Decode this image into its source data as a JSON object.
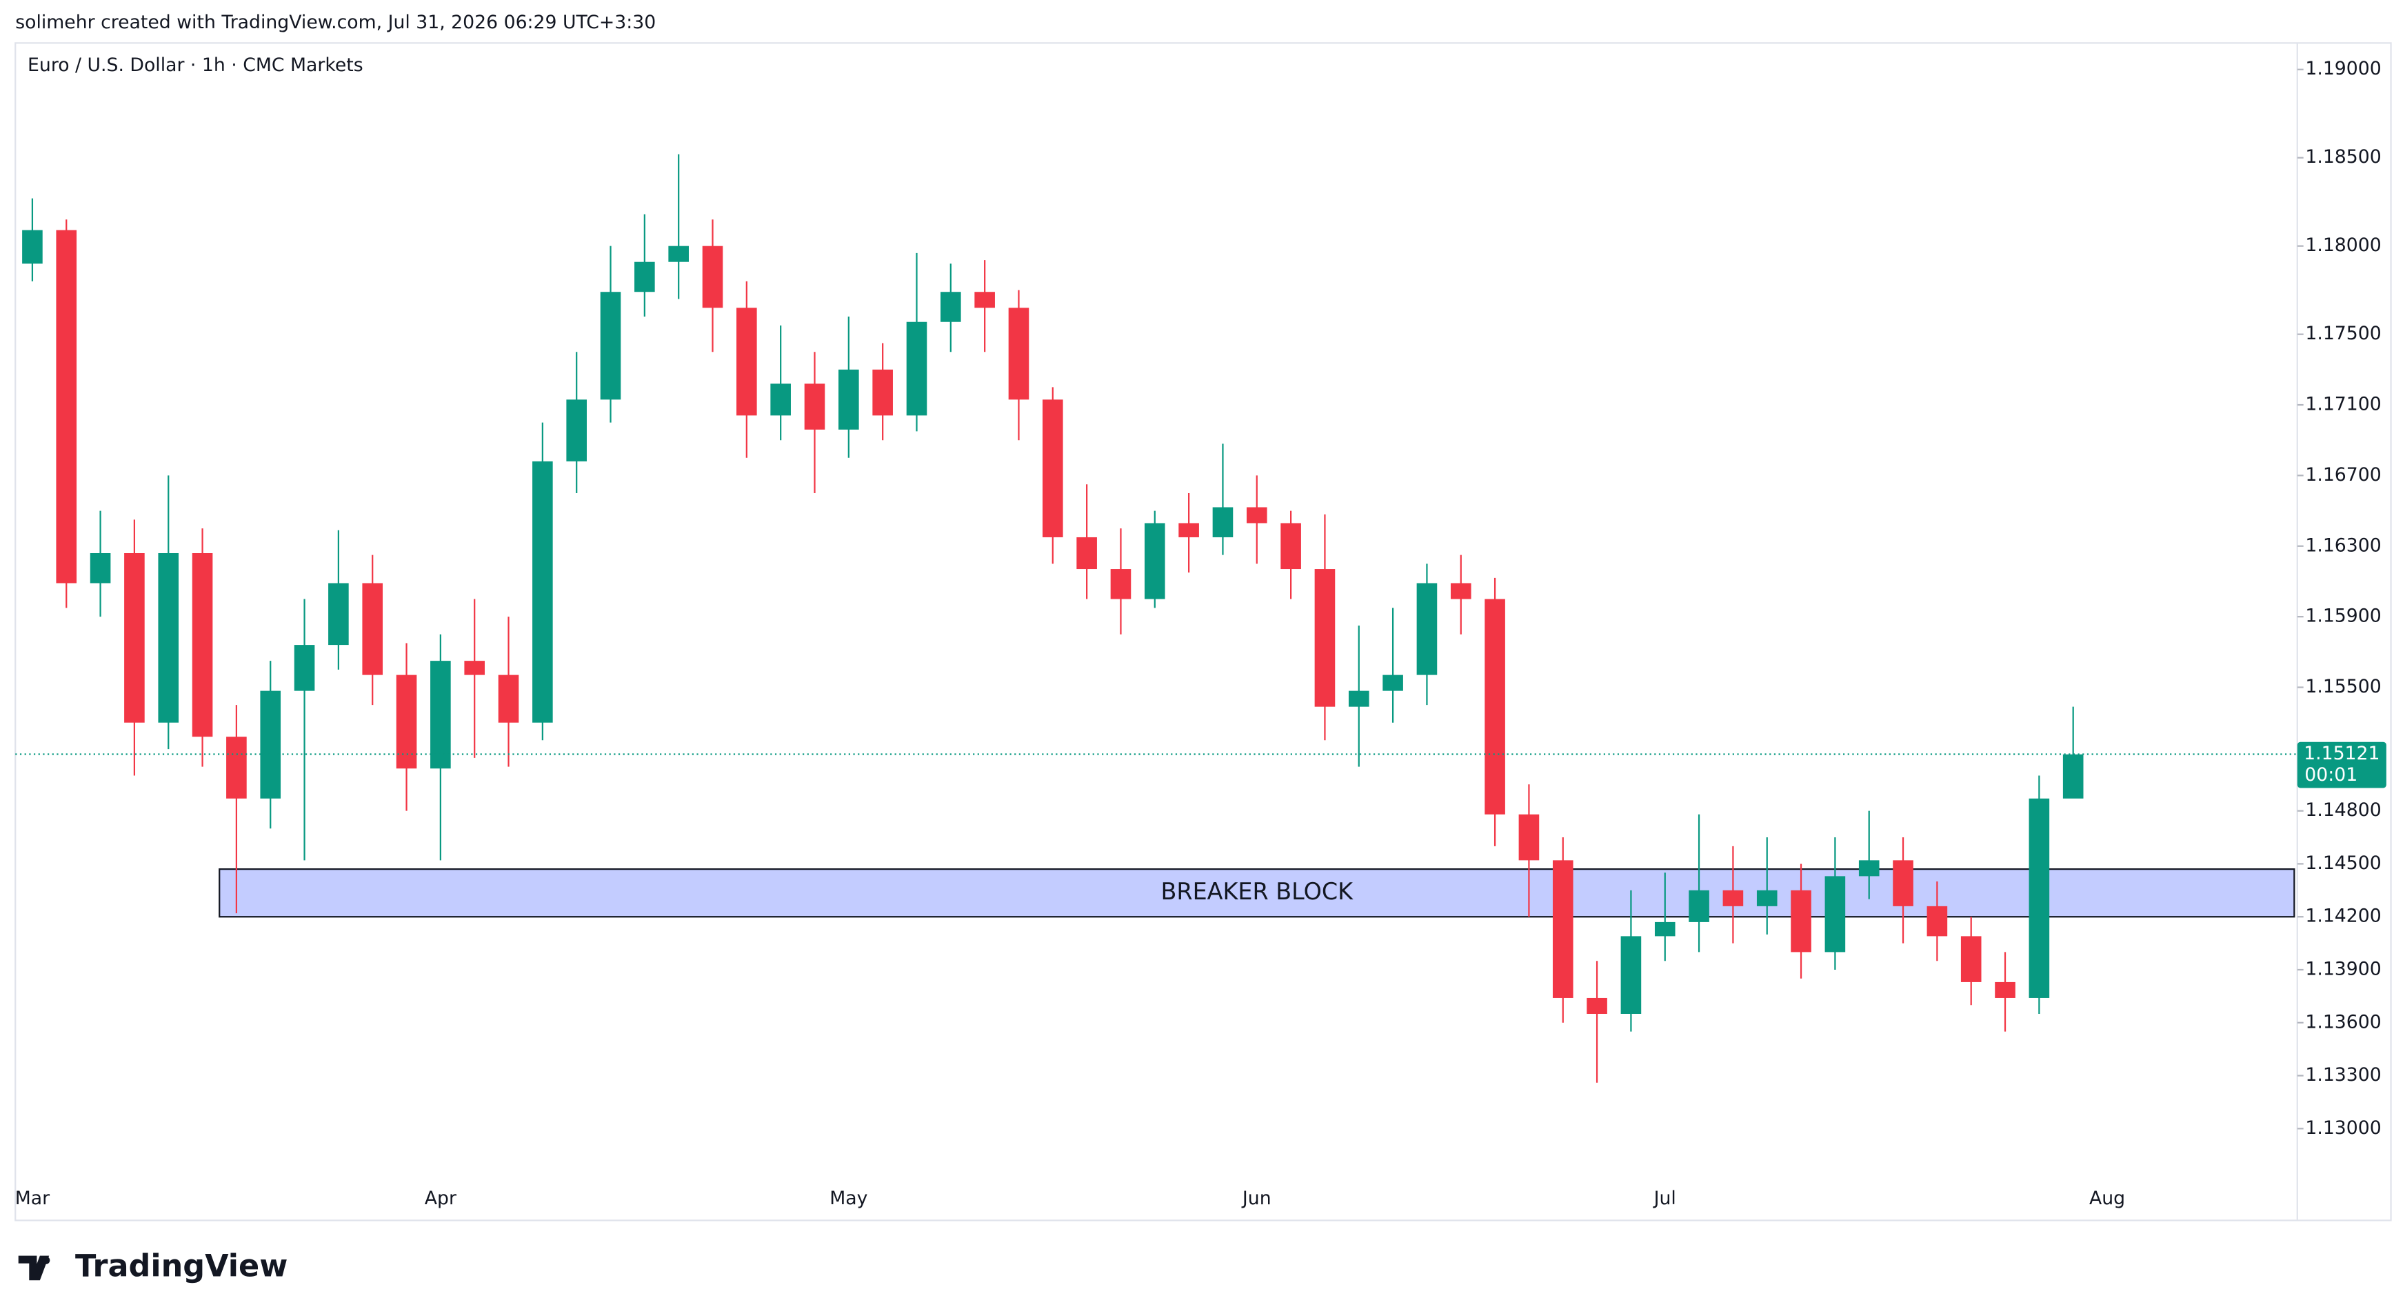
{
  "header": {
    "credit": "solimehr created with TradingView.com, Jul 31, 2026 06:29 UTC+3:30"
  },
  "chart_data": {
    "type": "candlestick",
    "title": "Euro / U.S. Dollar · 1h · CMC Markets",
    "up_color": "#089981",
    "down_color": "#f23645",
    "categories": [
      "Mar",
      null,
      null,
      null,
      null,
      null,
      null,
      null,
      null,
      null,
      null,
      null,
      "Apr",
      null,
      null,
      null,
      null,
      null,
      null,
      null,
      null,
      null,
      null,
      null,
      "May",
      null,
      null,
      null,
      null,
      null,
      null,
      null,
      null,
      null,
      null,
      null,
      "Jun",
      null,
      null,
      null,
      null,
      null,
      null,
      null,
      null,
      null,
      null,
      null,
      "Jul",
      null,
      null,
      null,
      null,
      null,
      null,
      null,
      null,
      null,
      null,
      null,
      null,
      "Aug",
      null,
      null,
      null,
      null,
      null
    ],
    "open": [
      1.179,
      1.1809,
      1.1609,
      1.1626,
      1.153,
      1.1626,
      1.1522,
      1.1487,
      1.1548,
      1.1574,
      1.1609,
      1.1557,
      1.1504,
      1.1565,
      1.1557,
      1.153,
      1.1678,
      1.1713,
      1.1774,
      1.1791,
      1.18,
      1.1765,
      1.1704,
      1.1722,
      1.1696,
      1.173,
      1.1704,
      1.1757,
      1.1774,
      1.1765,
      1.1713,
      1.1635,
      1.1617,
      1.16,
      1.1643,
      1.1635,
      1.1652,
      1.1643,
      1.1617,
      1.1539,
      1.1548,
      1.1557,
      1.1609,
      1.16,
      1.1478,
      1.1452,
      1.1374,
      1.1365,
      1.1409,
      1.1417,
      1.1435,
      1.1426,
      1.1435,
      1.14,
      1.1443,
      1.1452,
      1.1426,
      1.1409,
      1.1383,
      1.1374,
      1.1487,
      null,
      null,
      null,
      null,
      null,
      null
    ],
    "high": [
      1.1827,
      1.1815,
      1.165,
      1.1645,
      1.167,
      1.164,
      1.154,
      1.1565,
      1.16,
      1.1639,
      1.1625,
      1.1575,
      1.158,
      1.16,
      1.159,
      1.17,
      1.174,
      1.18,
      1.1818,
      1.1852,
      1.1815,
      1.178,
      1.1755,
      1.174,
      1.176,
      1.1745,
      1.1796,
      1.179,
      1.1792,
      1.1775,
      1.172,
      1.1665,
      1.164,
      1.165,
      1.166,
      1.1688,
      1.167,
      1.165,
      1.1648,
      1.1585,
      1.1595,
      1.162,
      1.1625,
      1.1612,
      1.1495,
      1.1465,
      1.1395,
      1.1435,
      1.1445,
      1.1478,
      1.146,
      1.1465,
      1.145,
      1.1465,
      1.148,
      1.1465,
      1.144,
      1.142,
      1.14,
      1.15,
      1.1539,
      null,
      null,
      null,
      null,
      null,
      null
    ],
    "low": [
      1.178,
      1.1595,
      1.159,
      1.15,
      1.1515,
      1.1505,
      1.1422,
      1.147,
      1.1452,
      1.156,
      1.154,
      1.148,
      1.1452,
      1.151,
      1.1505,
      1.152,
      1.166,
      1.17,
      1.176,
      1.177,
      1.174,
      1.168,
      1.169,
      1.166,
      1.168,
      1.169,
      1.1695,
      1.174,
      1.174,
      1.169,
      1.162,
      1.16,
      1.158,
      1.1595,
      1.1615,
      1.1625,
      1.162,
      1.16,
      1.152,
      1.1505,
      1.153,
      1.154,
      1.158,
      1.146,
      1.142,
      1.136,
      1.1326,
      1.1355,
      1.1395,
      1.14,
      1.1405,
      1.141,
      1.1385,
      1.139,
      1.143,
      1.1405,
      1.1395,
      1.137,
      1.1355,
      1.1365,
      1.149,
      null,
      null,
      null,
      null,
      null,
      null
    ],
    "close": [
      1.1809,
      1.1609,
      1.1626,
      1.153,
      1.1626,
      1.1522,
      1.1487,
      1.1548,
      1.1574,
      1.1609,
      1.1557,
      1.1504,
      1.1565,
      1.1557,
      1.153,
      1.1678,
      1.1713,
      1.1774,
      1.1791,
      1.18,
      1.1765,
      1.1704,
      1.1722,
      1.1696,
      1.173,
      1.1704,
      1.1757,
      1.1774,
      1.1765,
      1.1713,
      1.1635,
      1.1617,
      1.16,
      1.1643,
      1.1635,
      1.1652,
      1.1643,
      1.1617,
      1.1539,
      1.1548,
      1.1557,
      1.1609,
      1.16,
      1.1478,
      1.1452,
      1.1374,
      1.1365,
      1.1409,
      1.1417,
      1.1435,
      1.1426,
      1.1435,
      1.14,
      1.1443,
      1.1452,
      1.1426,
      1.1409,
      1.1383,
      1.1374,
      1.1487,
      1.1512,
      null,
      null,
      null,
      null,
      null,
      null
    ],
    "ylim": [
      1.1248,
      1.1915
    ],
    "yticks": [
      {
        "value": 1.19,
        "label": "1.19000"
      },
      {
        "value": 1.185,
        "label": "1.18500"
      },
      {
        "value": 1.18,
        "label": "1.18000"
      },
      {
        "value": 1.175,
        "label": "1.17500"
      },
      {
        "value": 1.171,
        "label": "1.17100"
      },
      {
        "value": 1.167,
        "label": "1.16700"
      },
      {
        "value": 1.163,
        "label": "1.16300"
      },
      {
        "value": 1.159,
        "label": "1.15900"
      },
      {
        "value": 1.155,
        "label": "1.15500"
      },
      {
        "value": 1.148,
        "label": "1.14800"
      },
      {
        "value": 1.145,
        "label": "1.14500"
      },
      {
        "value": 1.142,
        "label": "1.14200"
      },
      {
        "value": 1.139,
        "label": "1.13900"
      },
      {
        "value": 1.136,
        "label": "1.13600"
      },
      {
        "value": 1.133,
        "label": "1.13300"
      },
      {
        "value": 1.13,
        "label": "1.13000"
      }
    ],
    "last_price": 1.15121,
    "countdown": "00:01",
    "breaker_block": {
      "label": "BREAKER BLOCK",
      "top": 1.1447,
      "bottom": 1.142,
      "color": "#c3ccff"
    }
  },
  "footer": {
    "brand": "TradingView"
  }
}
